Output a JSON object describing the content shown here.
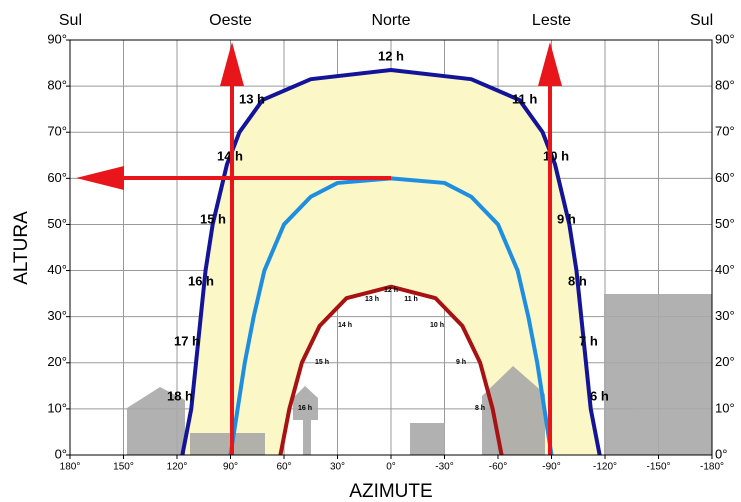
{
  "chart_data": {
    "type": "line",
    "xlabel": "AZIMUTE",
    "ylabel": "ALTURA",
    "xlim": [
      180,
      -180
    ],
    "ylim": [
      0,
      90
    ],
    "grid": true,
    "xticks": [
      {
        "value": 180,
        "label": "180°"
      },
      {
        "value": 150,
        "label": "150°"
      },
      {
        "value": 120,
        "label": "120°"
      },
      {
        "value": 90,
        "label": "90°"
      },
      {
        "value": 60,
        "label": "60°"
      },
      {
        "value": 30,
        "label": "30°"
      },
      {
        "value": 0,
        "label": "0°"
      },
      {
        "value": -30,
        "label": "-30°"
      },
      {
        "value": -60,
        "label": "-60°"
      },
      {
        "value": -90,
        "label": "-90°"
      },
      {
        "value": -120,
        "label": "-120°"
      },
      {
        "value": -150,
        "label": "-150°"
      },
      {
        "value": -180,
        "label": "-180°"
      }
    ],
    "x2ticks": [
      {
        "value": 180,
        "label": "Sul"
      },
      {
        "value": 90,
        "label": "Oeste"
      },
      {
        "value": 0,
        "label": "Norte"
      },
      {
        "value": -90,
        "label": "Leste"
      },
      {
        "value": -180,
        "label": "Sul"
      }
    ],
    "yticks": [
      {
        "value": 0,
        "label": "0°"
      },
      {
        "value": 10,
        "label": "10°"
      },
      {
        "value": 20,
        "label": "20°"
      },
      {
        "value": 30,
        "label": "30°"
      },
      {
        "value": 40,
        "label": "40°"
      },
      {
        "value": 50,
        "label": "50°"
      },
      {
        "value": 60,
        "label": "60°"
      },
      {
        "value": 70,
        "label": "70°"
      },
      {
        "value": 80,
        "label": "80°"
      },
      {
        "value": 90,
        "label": "90°"
      }
    ],
    "series": [
      {
        "color": "#14149a",
        "x": [
          117,
          112,
          108,
          104,
          100,
          92,
          85,
          72,
          45,
          0,
          -45,
          -72,
          -85,
          -92,
          -100,
          -104,
          -108,
          -112,
          -117
        ],
        "values": [
          0,
          10,
          25,
          40,
          50,
          63,
          70,
          77,
          81.5,
          83.5,
          81.5,
          77,
          70,
          63,
          50,
          40,
          25,
          10,
          0
        ]
      },
      {
        "color": "#1e8fe0",
        "x": [
          90,
          86,
          82,
          77,
          71,
          60,
          45,
          30,
          0,
          -30,
          -45,
          -60,
          -71,
          -77,
          -82,
          -86,
          -90
        ],
        "values": [
          0,
          10,
          20,
          30,
          40,
          50,
          56,
          59,
          60,
          59,
          56,
          50,
          40,
          30,
          20,
          10,
          0
        ]
      },
      {
        "color": "#a81212",
        "x": [
          62,
          57,
          50,
          40,
          25,
          0,
          -25,
          -40,
          -50,
          -57,
          -62
        ],
        "values": [
          0,
          10,
          20,
          28,
          34,
          36.5,
          34,
          28,
          20,
          10,
          0
        ]
      }
    ],
    "hour_labels": [
      "12 h",
      "11 h",
      "10 h",
      "9 h",
      "8 h",
      "7 h",
      "6 h",
      "13 h",
      "14 h",
      "15 h",
      "16 h",
      "17 h",
      "18 h"
    ],
    "winter_hour_labels": [
      "12 h",
      "11 h",
      "10 h",
      "9 h",
      "8 h",
      "13 h",
      "14 h",
      "15 h",
      "16 h"
    ]
  }
}
